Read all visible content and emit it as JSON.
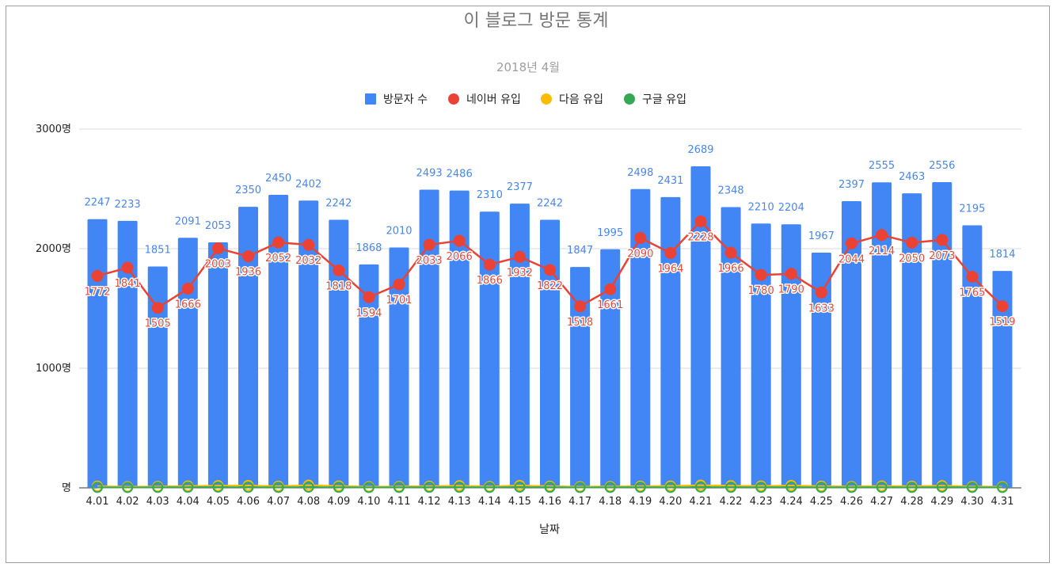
{
  "chart_data": {
    "type": "bar",
    "title": "이 블로그 방문 통계",
    "subtitle": "2018년 4월",
    "xlabel": "날짜",
    "ylabel": "",
    "ylim": [
      0,
      3000
    ],
    "y_ticks": [
      0,
      1000,
      2000,
      3000
    ],
    "y_tick_labels": [
      "명",
      "1000명",
      "2000명",
      "3000명"
    ],
    "grid": true,
    "legend_position": "top",
    "categories": [
      "4.01",
      "4.02",
      "4.03",
      "4.04",
      "4.05",
      "4.06",
      "4.07",
      "4.08",
      "4.09",
      "4.10",
      "4.11",
      "4.12",
      "4.13",
      "4.14",
      "4.15",
      "4.16",
      "4.17",
      "4.18",
      "4.19",
      "4.20",
      "4.21",
      "4.22",
      "4.23",
      "4.24",
      "4.25",
      "4.26",
      "4.27",
      "4.28",
      "4.29",
      "4.30",
      "4.31"
    ],
    "series": [
      {
        "name": "방문자 수",
        "type": "bar",
        "color": "#4285f4",
        "values": [
          2247,
          2233,
          1851,
          2091,
          2053,
          2350,
          2450,
          2402,
          2242,
          1868,
          2010,
          2493,
          2486,
          2310,
          2377,
          2242,
          1847,
          1995,
          2498,
          2431,
          2689,
          2348,
          2210,
          2204,
          1967,
          2397,
          2555,
          2463,
          2556,
          2195,
          1814
        ]
      },
      {
        "name": "네이버 유입",
        "type": "line",
        "color": "#ea4335",
        "values": [
          1772,
          1841,
          1505,
          1666,
          2003,
          1936,
          2052,
          2032,
          1818,
          1594,
          1701,
          2033,
          2066,
          1866,
          1932,
          1822,
          1518,
          1661,
          2090,
          1964,
          2228,
          1966,
          1780,
          1790,
          1633,
          2044,
          2114,
          2050,
          2073,
          1765,
          1519
        ]
      },
      {
        "name": "다음 유입",
        "type": "line",
        "color": "#fbbc04",
        "values": [
          14,
          10,
          12,
          16,
          18,
          20,
          14,
          22,
          16,
          10,
          12,
          14,
          18,
          12,
          20,
          14,
          10,
          12,
          14,
          16,
          22,
          18,
          16,
          20,
          14,
          12,
          16,
          14,
          18,
          12,
          10
        ]
      },
      {
        "name": "구글 유입",
        "type": "line",
        "color": "#34a853",
        "values": [
          4,
          3,
          4,
          5,
          6,
          5,
          4,
          6,
          5,
          3,
          4,
          5,
          5,
          4,
          6,
          5,
          3,
          4,
          5,
          4,
          7,
          5,
          5,
          6,
          4,
          4,
          5,
          4,
          6,
          4,
          3
        ]
      }
    ]
  }
}
